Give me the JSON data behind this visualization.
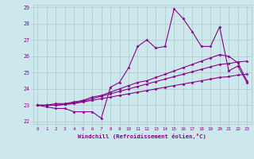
{
  "xlabel": "Windchill (Refroidissement éolien,°C)",
  "xlim_min": -0.5,
  "xlim_max": 23.5,
  "ylim_min": 21.85,
  "ylim_max": 29.15,
  "yticks": [
    22,
    23,
    24,
    25,
    26,
    27,
    28,
    29
  ],
  "xticks": [
    0,
    1,
    2,
    3,
    4,
    5,
    6,
    7,
    8,
    9,
    10,
    11,
    12,
    13,
    14,
    15,
    16,
    17,
    18,
    19,
    20,
    21,
    22,
    23
  ],
  "bg_color": "#cde8ec",
  "line_color": "#880088",
  "grid_color": "#b0c8cc",
  "lines": [
    [
      23.0,
      22.9,
      22.8,
      22.8,
      22.6,
      22.6,
      22.6,
      22.2,
      24.1,
      24.4,
      25.3,
      26.6,
      27.0,
      26.5,
      26.6,
      28.9,
      28.3,
      27.5,
      26.6,
      26.6,
      27.8,
      25.1,
      25.4,
      24.4
    ],
    [
      23.0,
      23.0,
      23.1,
      23.1,
      23.2,
      23.3,
      23.5,
      23.6,
      23.8,
      24.0,
      24.2,
      24.4,
      24.5,
      24.7,
      24.9,
      25.1,
      25.3,
      25.5,
      25.7,
      25.9,
      26.1,
      26.0,
      25.6,
      24.5
    ],
    [
      23.0,
      23.0,
      23.0,
      23.05,
      23.1,
      23.2,
      23.3,
      23.4,
      23.5,
      23.6,
      23.7,
      23.8,
      23.9,
      24.0,
      24.1,
      24.2,
      24.3,
      24.4,
      24.5,
      24.6,
      24.7,
      24.75,
      24.85,
      24.9
    ],
    [
      23.0,
      23.0,
      23.0,
      23.05,
      23.15,
      23.25,
      23.4,
      23.55,
      23.7,
      23.85,
      24.0,
      24.15,
      24.3,
      24.45,
      24.6,
      24.75,
      24.9,
      25.05,
      25.2,
      25.35,
      25.5,
      25.55,
      25.65,
      25.7
    ]
  ]
}
